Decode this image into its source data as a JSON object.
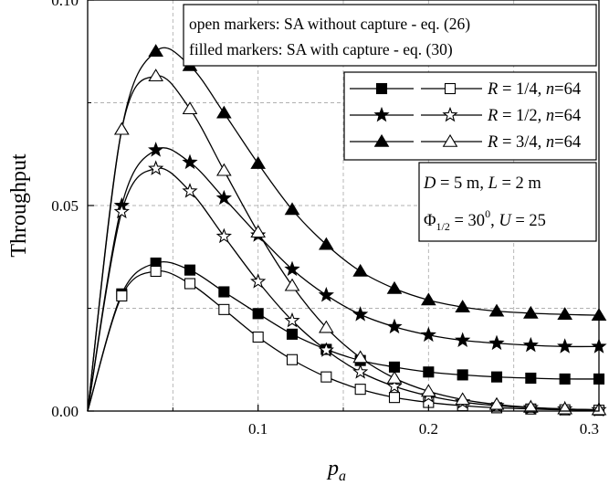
{
  "chart_data": {
    "type": "line",
    "xlabel": "p",
    "xlabel_sub": "a",
    "ylabel": "Throughput",
    "xlim": [
      0.0,
      0.3
    ],
    "ylim": [
      0.0,
      0.1
    ],
    "xticks": [
      0.1,
      0.2,
      0.3
    ],
    "xtick_labels": [
      "0.1",
      "0.2",
      "0.3"
    ],
    "yticks": [
      0.0,
      0.05,
      0.1
    ],
    "ytick_labels": [
      "0.00",
      "0.05",
      "0.10"
    ],
    "grid": true,
    "x": [
      0.0,
      0.02,
      0.04,
      0.06,
      0.08,
      0.1,
      0.12,
      0.14,
      0.16,
      0.18,
      0.2,
      0.22,
      0.24,
      0.26,
      0.28,
      0.3
    ],
    "series": [
      {
        "name": "R = 1/4, n=64",
        "capture": true,
        "marker": "square",
        "filled": true,
        "values": [
          0.0,
          0.0285,
          0.036,
          0.0343,
          0.029,
          0.0237,
          0.0187,
          0.015,
          0.0123,
          0.0107,
          0.0095,
          0.0088,
          0.0083,
          0.008,
          0.0078,
          0.0078
        ]
      },
      {
        "name": "R = 1/4, n=64",
        "capture": false,
        "marker": "square",
        "filled": false,
        "values": [
          0.0,
          0.028,
          0.034,
          0.031,
          0.0247,
          0.018,
          0.0125,
          0.0083,
          0.0053,
          0.0033,
          0.0021,
          0.0013,
          0.0008,
          0.0005,
          0.0003,
          0.0002
        ]
      },
      {
        "name": "R = 1/2, n=64",
        "capture": true,
        "marker": "star",
        "filled": true,
        "values": [
          0.0,
          0.05,
          0.0635,
          0.0605,
          0.0518,
          0.0428,
          0.0345,
          0.0282,
          0.0235,
          0.0205,
          0.0185,
          0.0172,
          0.0165,
          0.016,
          0.0157,
          0.0157
        ]
      },
      {
        "name": "R = 1/2, n=64",
        "capture": false,
        "marker": "star",
        "filled": false,
        "values": [
          0.0,
          0.0485,
          0.059,
          0.0535,
          0.0425,
          0.0315,
          0.022,
          0.0148,
          0.0095,
          0.006,
          0.0037,
          0.0022,
          0.0013,
          0.0008,
          0.0005,
          0.0003
        ]
      },
      {
        "name": "R = 3/4, n=64",
        "capture": true,
        "marker": "triangle",
        "filled": true,
        "values": [
          0.0,
          0.0685,
          0.0875,
          0.084,
          0.0725,
          0.0602,
          0.049,
          0.0405,
          0.034,
          0.0298,
          0.027,
          0.0253,
          0.0243,
          0.0238,
          0.0235,
          0.0233
        ]
      },
      {
        "name": "R = 3/4, n=64",
        "capture": false,
        "marker": "triangle",
        "filled": false,
        "values": [
          0.0,
          0.0685,
          0.0815,
          0.0735,
          0.0585,
          0.0435,
          0.0305,
          0.0203,
          0.013,
          0.008,
          0.0048,
          0.0028,
          0.0016,
          0.0009,
          0.0005,
          0.0003
        ]
      }
    ],
    "legend": {
      "placement": "top-right",
      "entries": [
        {
          "marker": "square",
          "R": "1/4",
          "n": "64"
        },
        {
          "marker": "star",
          "R": "1/2",
          "n": "64"
        },
        {
          "marker": "triangle",
          "R": "3/4",
          "n": "64"
        }
      ]
    },
    "annotations": {
      "marker_note_line1": "open markers: SA without capture - eq. (26)",
      "marker_note_line2": "filled markers: SA with capture - eq. (30)",
      "params_line1_D": "D",
      "params_line1_D_val": " = 5 m, ",
      "params_line1_L": "L",
      "params_line1_L_val": " = 2 m",
      "params_line2_phi": "Φ",
      "params_line2_phi_sub": "1/2",
      "params_line2_phi_val": " = 30",
      "params_line2_phi_sup": "0",
      "params_line2_sep": ", ",
      "params_line2_U": "U",
      "params_line2_U_val": " = 25"
    }
  }
}
